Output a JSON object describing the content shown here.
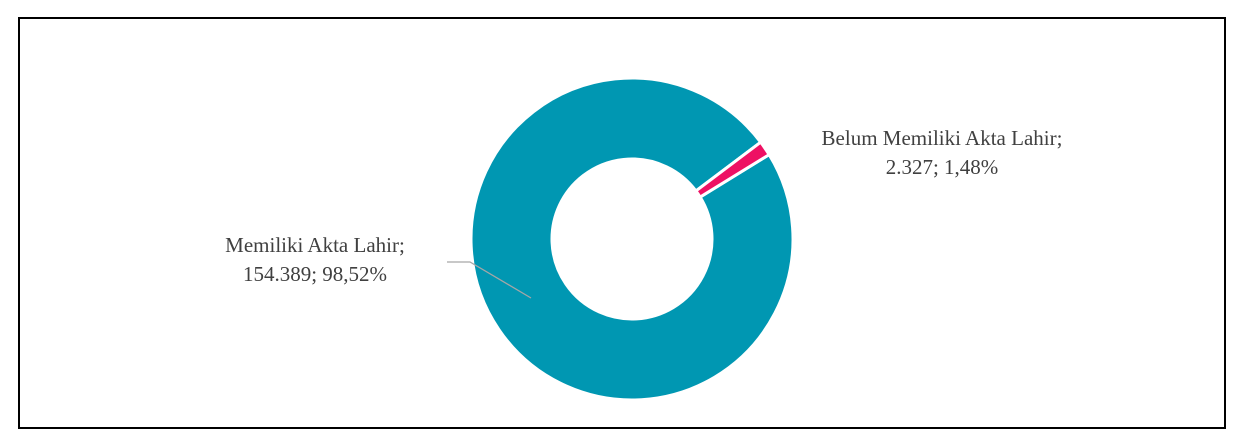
{
  "chart_data": {
    "type": "donut",
    "categories": [
      "Memiliki Akta Lahir;",
      "Belum Memiliki Akta Lahir;"
    ],
    "values": [
      154389,
      2327
    ],
    "value_labels": [
      "154.389; 98,52%",
      "2.327; 1,48%"
    ],
    "colors": [
      "#0097b2",
      "#ee1163"
    ],
    "start_angle": 58.4
  }
}
